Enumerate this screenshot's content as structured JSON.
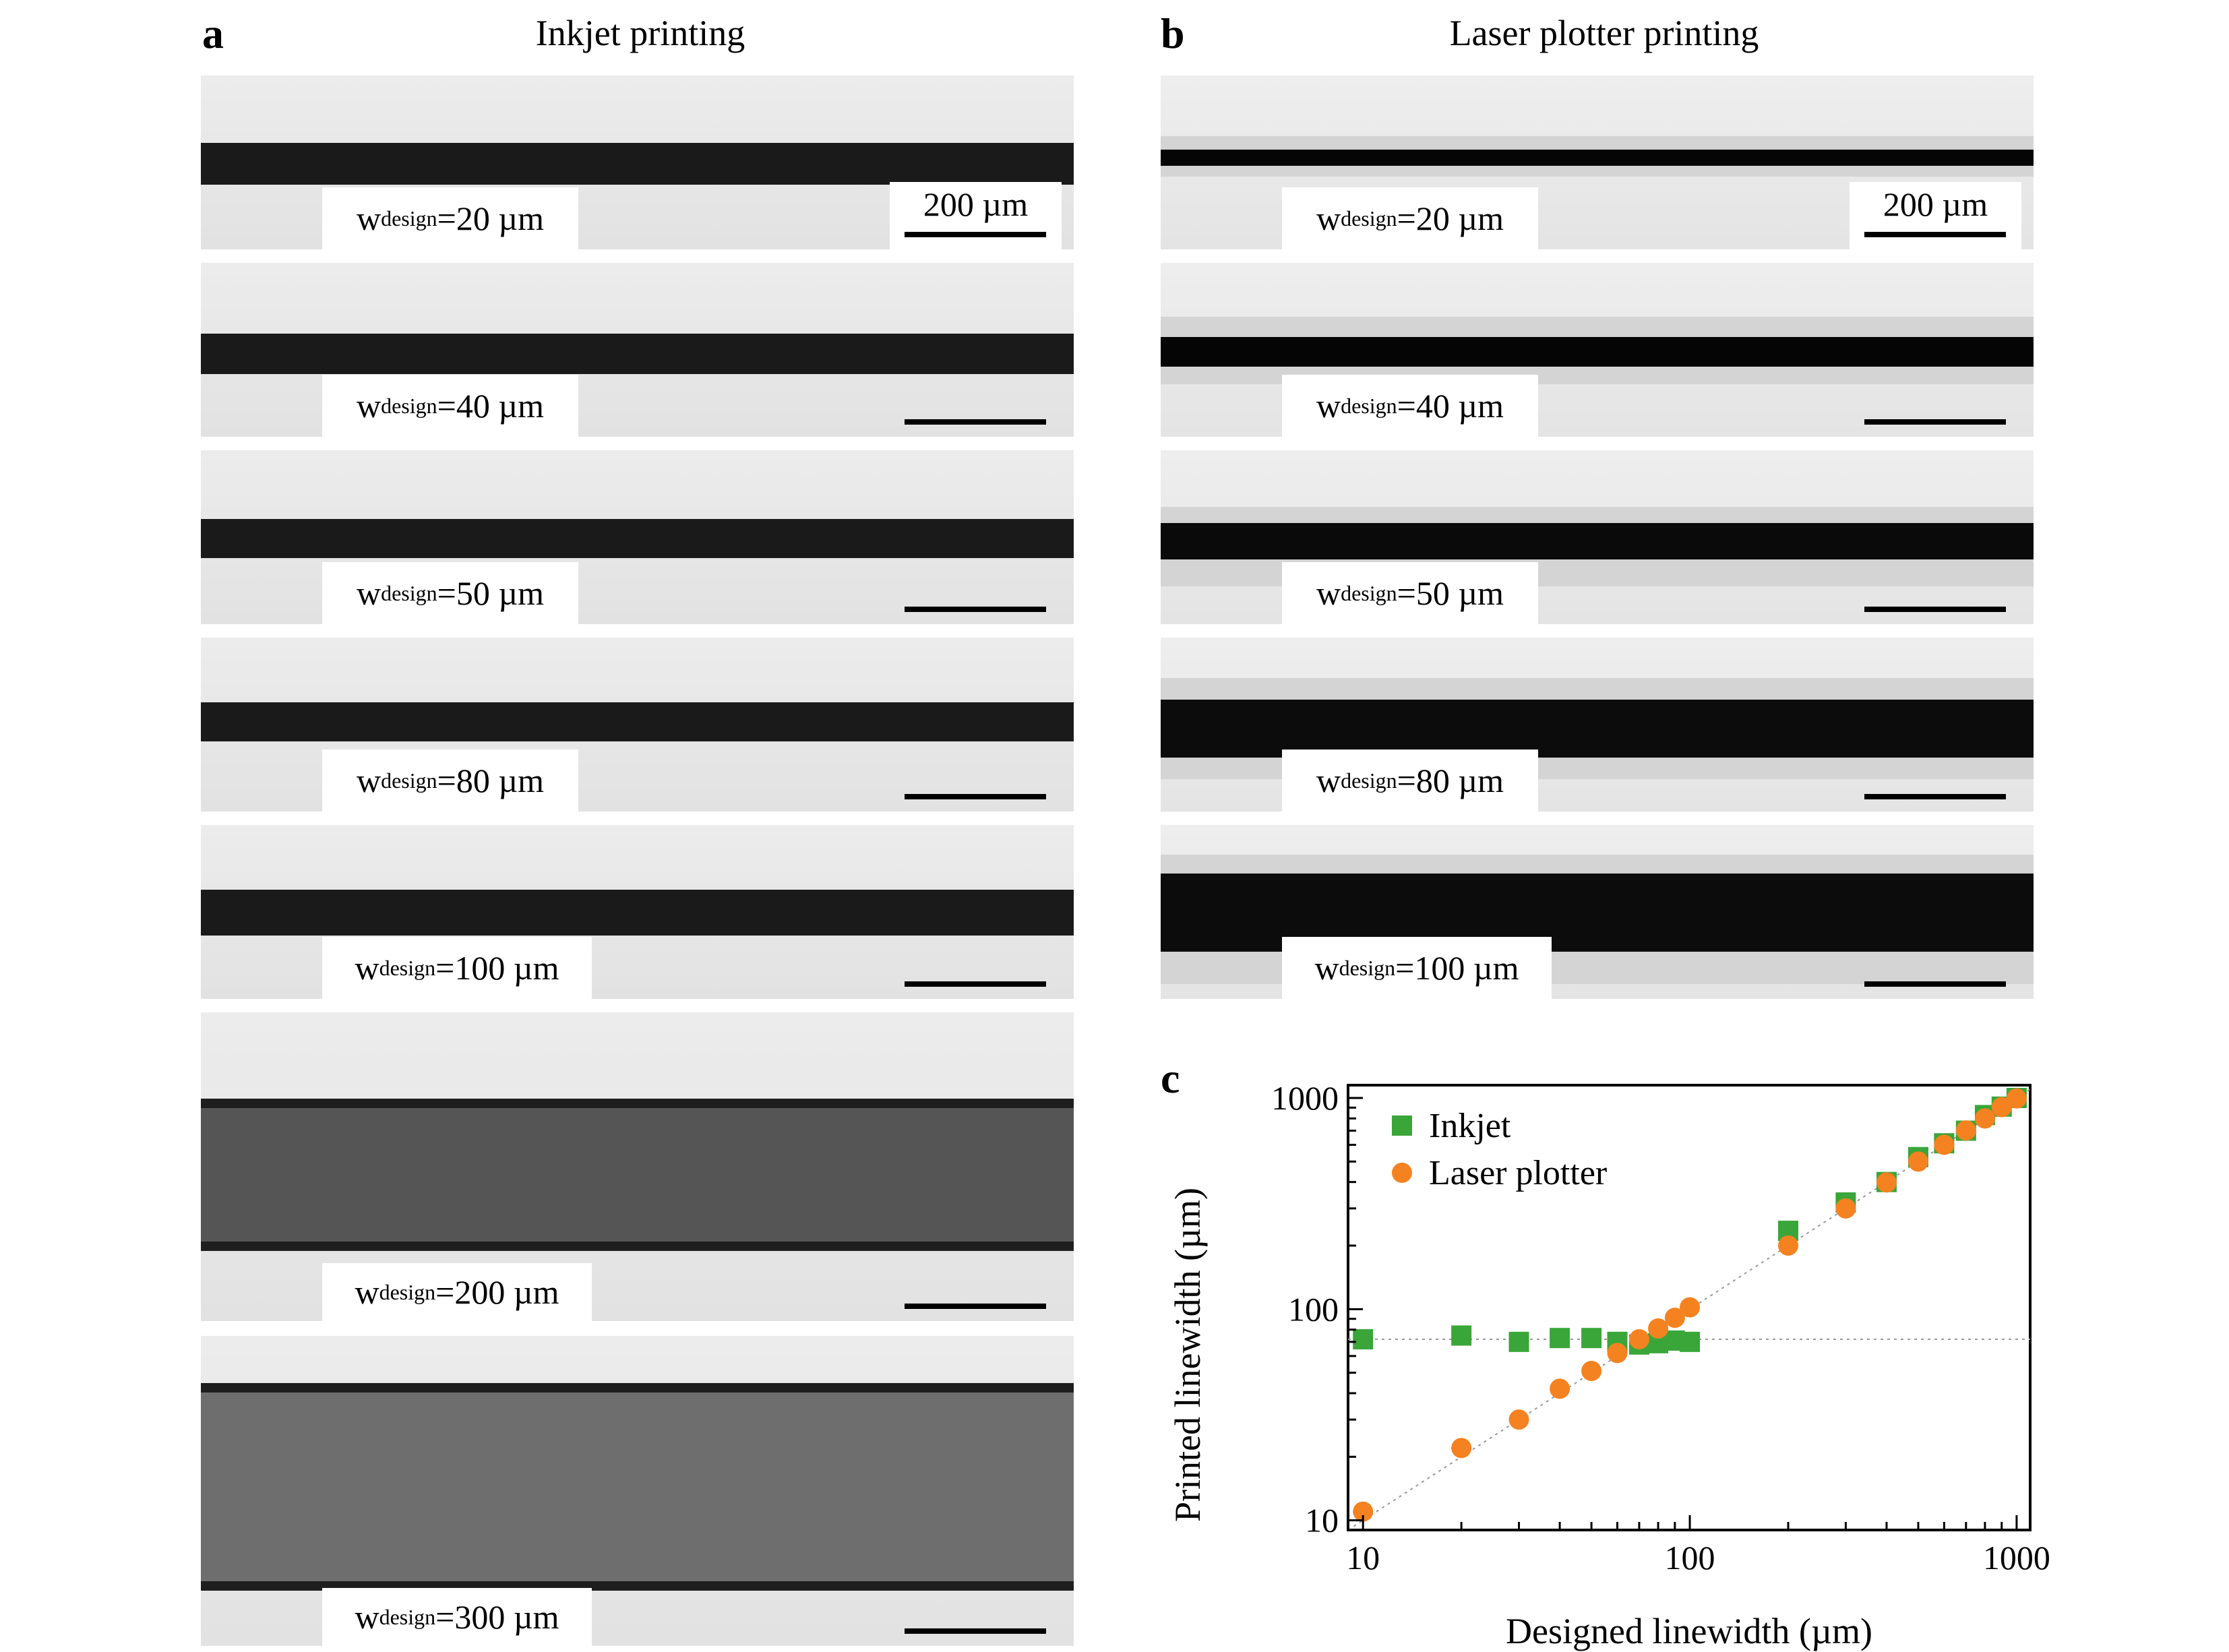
{
  "panels": {
    "a": {
      "letter": "a",
      "title": "Inkjet printing"
    },
    "b": {
      "letter": "b",
      "title": "Laser plotter printing"
    },
    "c": {
      "letter": "c"
    }
  },
  "scale_label": "200 µm",
  "label_prefix": "w",
  "label_sub": "design",
  "inkjet_labels": [
    "=20 µm",
    "=40 µm",
    "=50 µm",
    "=80 µm",
    "=100 µm",
    "=200 µm",
    "=300 µm"
  ],
  "laser_labels": [
    "=20 µm",
    "=40 µm",
    "=50 µm",
    "=80 µm",
    "=100 µm"
  ],
  "colors": {
    "inkjet": "#3aa63a",
    "laser": "#f58220"
  },
  "chart_data": {
    "type": "scatter",
    "xlabel": "Designed linewidth (µm)",
    "ylabel": "Printed linewidth (µm)",
    "x_scale": "log",
    "y_scale": "log",
    "xlim": [
      9,
      1100
    ],
    "ylim": [
      9,
      1150
    ],
    "x_ticks": [
      10,
      100,
      1000
    ],
    "y_ticks": [
      10,
      100,
      1000
    ],
    "legend_position": "top-left",
    "series": [
      {
        "name": "Inkjet",
        "marker": "square",
        "points": [
          [
            10,
            72
          ],
          [
            20,
            75
          ],
          [
            30,
            70
          ],
          [
            40,
            73
          ],
          [
            50,
            73
          ],
          [
            60,
            70
          ],
          [
            70,
            68
          ],
          [
            80,
            69
          ],
          [
            90,
            71
          ],
          [
            100,
            70
          ],
          [
            200,
            235
          ],
          [
            300,
            320
          ],
          [
            400,
            400
          ],
          [
            500,
            525
          ],
          [
            600,
            610
          ],
          [
            700,
            700
          ],
          [
            800,
            830
          ],
          [
            900,
            910
          ],
          [
            1000,
            1000
          ]
        ]
      },
      {
        "name": "Laser plotter",
        "marker": "circle",
        "points": [
          [
            10,
            11
          ],
          [
            20,
            22
          ],
          [
            30,
            30
          ],
          [
            40,
            42
          ],
          [
            50,
            51
          ],
          [
            60,
            62
          ],
          [
            70,
            72
          ],
          [
            80,
            81
          ],
          [
            90,
            91
          ],
          [
            100,
            102
          ],
          [
            200,
            200
          ],
          [
            300,
            300
          ],
          [
            400,
            398
          ],
          [
            500,
            500
          ],
          [
            600,
            600
          ],
          [
            700,
            702
          ],
          [
            800,
            800
          ],
          [
            900,
            905
          ],
          [
            1000,
            995
          ]
        ]
      }
    ],
    "reference_lines": [
      {
        "kind": "horizontal",
        "y": 72
      },
      {
        "kind": "diagonal"
      }
    ]
  }
}
